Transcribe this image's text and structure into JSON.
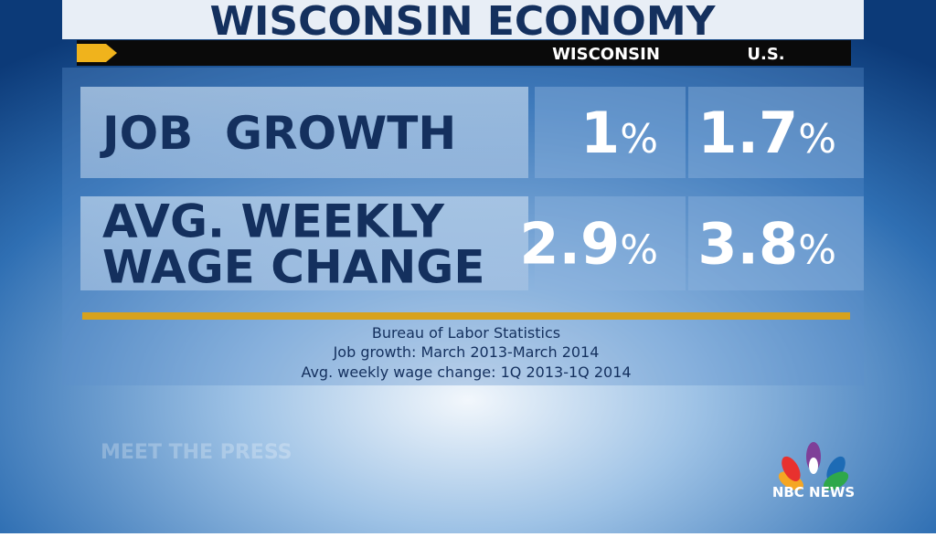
{
  "header": {
    "title": "WISCONSIN ECONOMY",
    "columns": [
      "WISCONSIN",
      "U.S."
    ]
  },
  "table": {
    "rows": [
      {
        "label": [
          "JOB  GROWTH"
        ],
        "cells": [
          {
            "value": "1",
            "unit": "%"
          },
          {
            "value": "1.7",
            "unit": "%"
          }
        ]
      },
      {
        "label": [
          "AVG. WEEKLY",
          "WAGE CHANGE"
        ],
        "cells": [
          {
            "value": "2.9",
            "unit": "%"
          },
          {
            "value": "3.8",
            "unit": "%"
          }
        ]
      }
    ]
  },
  "source": [
    "Bureau of Labor Statistics",
    "Job growth: March 2013-March 2014",
    "Avg. weekly wage change: 1Q 2013-1Q 2014"
  ],
  "watermark": "MEET THE PRESS",
  "logo": "NBC NEWS"
}
